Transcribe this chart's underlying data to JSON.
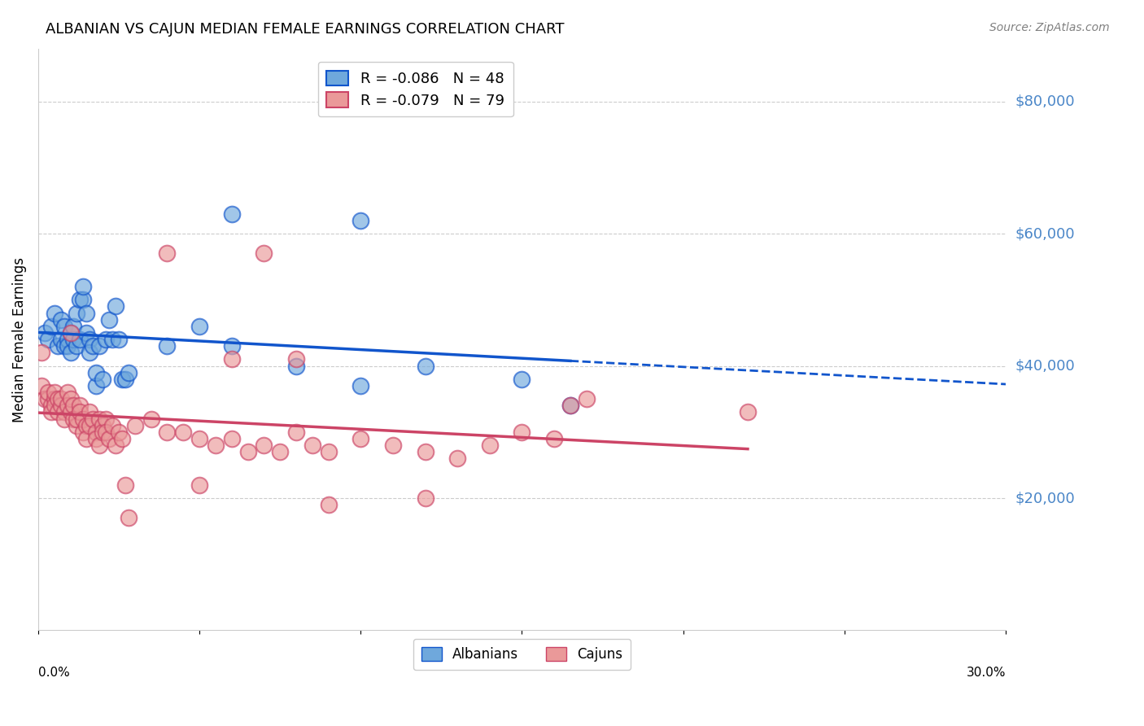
{
  "title": "ALBANIAN VS CAJUN MEDIAN FEMALE EARNINGS CORRELATION CHART",
  "source": "Source: ZipAtlas.com",
  "ylabel": "Median Female Earnings",
  "y_tick_labels": [
    "$80,000",
    "$60,000",
    "$40,000",
    "$20,000"
  ],
  "y_tick_values": [
    80000,
    60000,
    40000,
    20000
  ],
  "ylim": [
    0,
    88000
  ],
  "xlim": [
    0.0,
    0.3
  ],
  "legend_albanian": "R = -0.086   N = 48",
  "legend_cajun": "R = -0.079   N = 79",
  "albanian_color": "#6fa8dc",
  "cajun_color": "#ea9999",
  "trendline_albanian_color": "#1155cc",
  "trendline_cajun_color": "#cc4466",
  "background_color": "#ffffff",
  "grid_color": "#cccccc",
  "right_label_color": "#4a86c8",
  "albanians_scatter": [
    [
      0.002,
      45000
    ],
    [
      0.003,
      44000
    ],
    [
      0.004,
      46000
    ],
    [
      0.005,
      48000
    ],
    [
      0.006,
      43000
    ],
    [
      0.007,
      44000
    ],
    [
      0.007,
      47000
    ],
    [
      0.008,
      43000
    ],
    [
      0.008,
      46000
    ],
    [
      0.009,
      44000
    ],
    [
      0.009,
      43000
    ],
    [
      0.01,
      45000
    ],
    [
      0.01,
      42000
    ],
    [
      0.011,
      44000
    ],
    [
      0.011,
      46000
    ],
    [
      0.012,
      48000
    ],
    [
      0.012,
      43000
    ],
    [
      0.013,
      50000
    ],
    [
      0.013,
      44000
    ],
    [
      0.014,
      50000
    ],
    [
      0.014,
      52000
    ],
    [
      0.015,
      48000
    ],
    [
      0.015,
      45000
    ],
    [
      0.016,
      44000
    ],
    [
      0.016,
      42000
    ],
    [
      0.017,
      43000
    ],
    [
      0.018,
      37000
    ],
    [
      0.018,
      39000
    ],
    [
      0.019,
      43000
    ],
    [
      0.02,
      38000
    ],
    [
      0.021,
      44000
    ],
    [
      0.022,
      47000
    ],
    [
      0.023,
      44000
    ],
    [
      0.024,
      49000
    ],
    [
      0.025,
      44000
    ],
    [
      0.026,
      38000
    ],
    [
      0.027,
      38000
    ],
    [
      0.028,
      39000
    ],
    [
      0.04,
      43000
    ],
    [
      0.05,
      46000
    ],
    [
      0.06,
      43000
    ],
    [
      0.08,
      40000
    ],
    [
      0.1,
      37000
    ],
    [
      0.12,
      40000
    ],
    [
      0.15,
      38000
    ],
    [
      0.165,
      34000
    ],
    [
      0.06,
      63000
    ],
    [
      0.1,
      62000
    ]
  ],
  "cajuns_scatter": [
    [
      0.001,
      37000
    ],
    [
      0.002,
      35000
    ],
    [
      0.003,
      35000
    ],
    [
      0.003,
      36000
    ],
    [
      0.004,
      34000
    ],
    [
      0.004,
      33000
    ],
    [
      0.005,
      35000
    ],
    [
      0.005,
      36000
    ],
    [
      0.005,
      34000
    ],
    [
      0.006,
      35000
    ],
    [
      0.006,
      33000
    ],
    [
      0.007,
      34000
    ],
    [
      0.007,
      35000
    ],
    [
      0.008,
      33000
    ],
    [
      0.008,
      32000
    ],
    [
      0.009,
      36000
    ],
    [
      0.009,
      34000
    ],
    [
      0.01,
      33000
    ],
    [
      0.01,
      35000
    ],
    [
      0.011,
      34000
    ],
    [
      0.011,
      32000
    ],
    [
      0.012,
      31000
    ],
    [
      0.012,
      32000
    ],
    [
      0.013,
      34000
    ],
    [
      0.013,
      33000
    ],
    [
      0.014,
      30000
    ],
    [
      0.014,
      32000
    ],
    [
      0.015,
      31000
    ],
    [
      0.015,
      29000
    ],
    [
      0.016,
      33000
    ],
    [
      0.016,
      31000
    ],
    [
      0.017,
      32000
    ],
    [
      0.018,
      30000
    ],
    [
      0.018,
      29000
    ],
    [
      0.019,
      28000
    ],
    [
      0.019,
      32000
    ],
    [
      0.02,
      31000
    ],
    [
      0.02,
      30000
    ],
    [
      0.021,
      32000
    ],
    [
      0.021,
      30000
    ],
    [
      0.022,
      29000
    ],
    [
      0.023,
      31000
    ],
    [
      0.024,
      28000
    ],
    [
      0.025,
      30000
    ],
    [
      0.026,
      29000
    ],
    [
      0.027,
      22000
    ],
    [
      0.028,
      17000
    ],
    [
      0.03,
      31000
    ],
    [
      0.035,
      32000
    ],
    [
      0.04,
      30000
    ],
    [
      0.045,
      30000
    ],
    [
      0.05,
      29000
    ],
    [
      0.055,
      28000
    ],
    [
      0.06,
      29000
    ],
    [
      0.065,
      27000
    ],
    [
      0.07,
      28000
    ],
    [
      0.075,
      27000
    ],
    [
      0.08,
      30000
    ],
    [
      0.085,
      28000
    ],
    [
      0.09,
      27000
    ],
    [
      0.1,
      29000
    ],
    [
      0.11,
      28000
    ],
    [
      0.12,
      27000
    ],
    [
      0.13,
      26000
    ],
    [
      0.14,
      28000
    ],
    [
      0.15,
      30000
    ],
    [
      0.16,
      29000
    ],
    [
      0.17,
      35000
    ],
    [
      0.04,
      57000
    ],
    [
      0.07,
      57000
    ],
    [
      0.08,
      41000
    ],
    [
      0.12,
      20000
    ],
    [
      0.09,
      19000
    ],
    [
      0.05,
      22000
    ],
    [
      0.06,
      41000
    ],
    [
      0.001,
      42000
    ],
    [
      0.165,
      34000
    ],
    [
      0.22,
      33000
    ],
    [
      0.01,
      45000
    ]
  ]
}
